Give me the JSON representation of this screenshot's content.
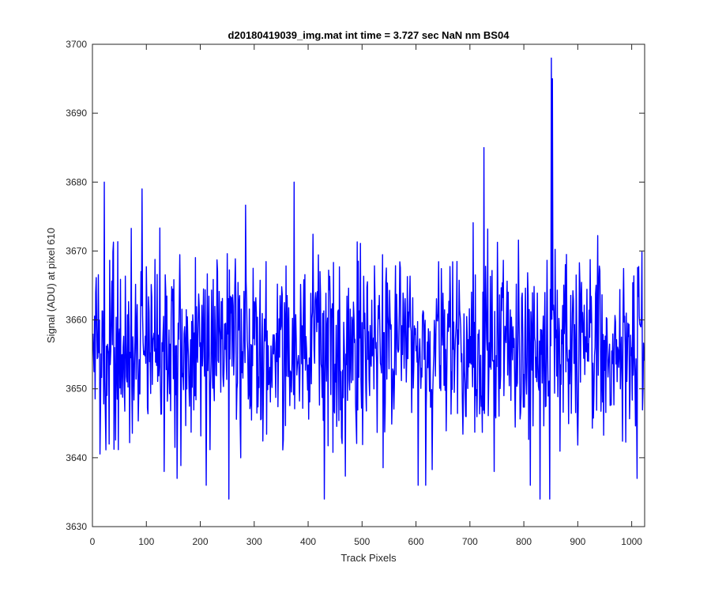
{
  "chart_data": {
    "type": "line",
    "title": "d20180419039_img.mat int time = 3.727 sec  NaN nm BS04",
    "xlabel": "Track Pixels",
    "ylabel": "Signal (ADU) at pixel 610",
    "xlim": [
      0,
      1024
    ],
    "ylim": [
      3630,
      3700
    ],
    "xticks": [
      0,
      100,
      200,
      300,
      400,
      500,
      600,
      700,
      800,
      900,
      1000
    ],
    "yticks": [
      3630,
      3640,
      3650,
      3660,
      3670,
      3680,
      3690,
      3700
    ],
    "grid": false,
    "legend": "none",
    "colors": {
      "series": "#0000ff",
      "axes": "#262626"
    },
    "series": [
      {
        "x_start": 1,
        "x_step": 1,
        "points": 1024,
        "mean": 3656,
        "std": 7,
        "min": 3634,
        "max": 3698,
        "notable_points": [
          {
            "x": 22,
            "y": 3680
          },
          {
            "x": 92,
            "y": 3679
          },
          {
            "x": 133,
            "y": 3638
          },
          {
            "x": 157,
            "y": 3637
          },
          {
            "x": 211,
            "y": 3636
          },
          {
            "x": 253,
            "y": 3634
          },
          {
            "x": 374,
            "y": 3680
          },
          {
            "x": 430,
            "y": 3634
          },
          {
            "x": 604,
            "y": 3636
          },
          {
            "x": 726,
            "y": 3685
          },
          {
            "x": 745,
            "y": 3638
          },
          {
            "x": 812,
            "y": 3636
          },
          {
            "x": 830,
            "y": 3634
          },
          {
            "x": 851,
            "y": 3698
          },
          {
            "x": 853,
            "y": 3695
          },
          {
            "x": 848,
            "y": 3634
          },
          {
            "x": 1010,
            "y": 3637
          }
        ]
      }
    ]
  }
}
